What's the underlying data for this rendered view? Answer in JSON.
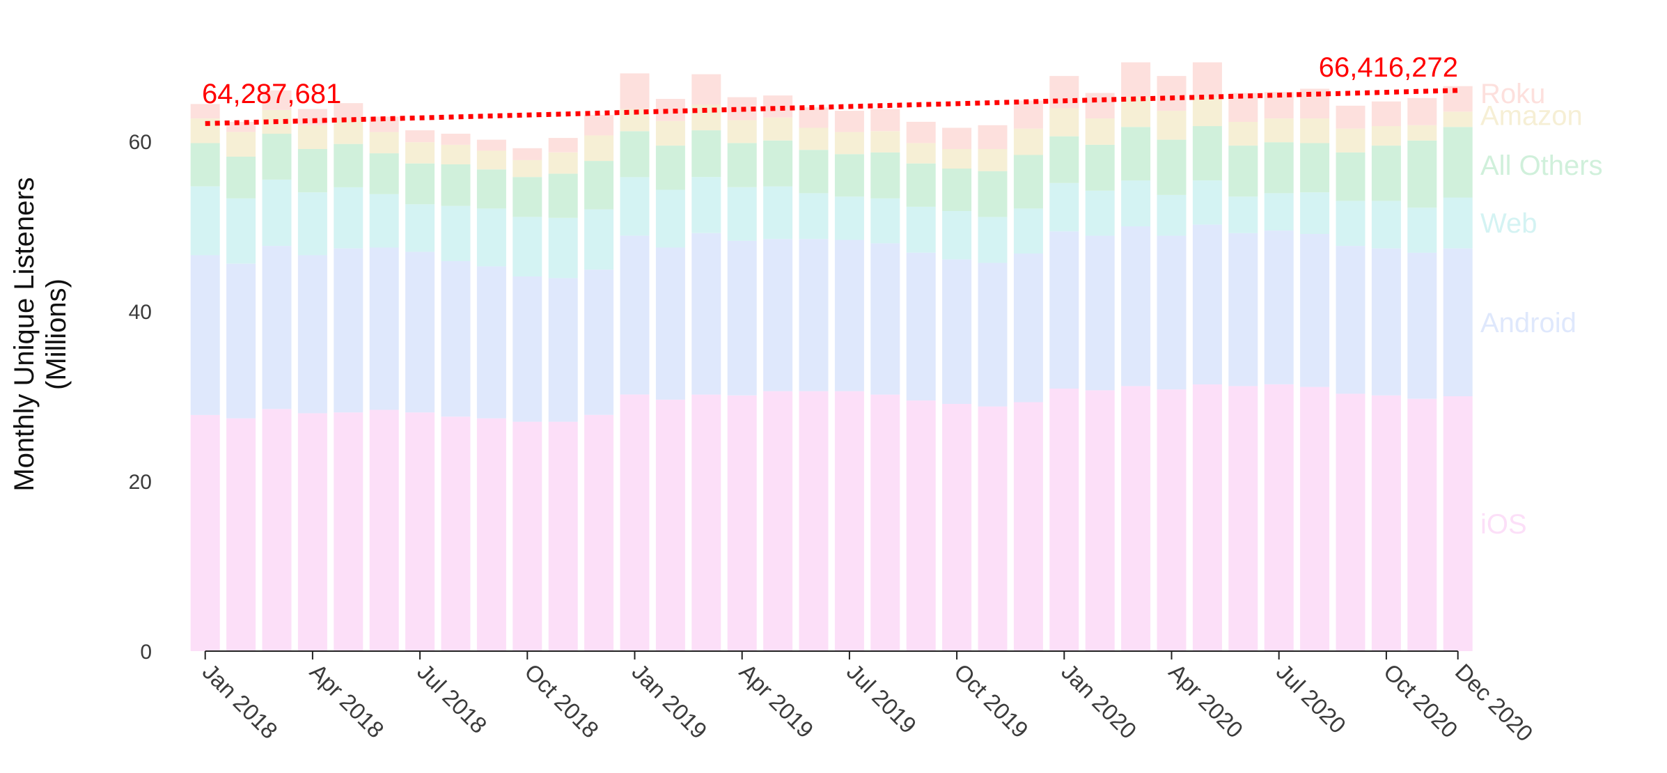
{
  "chart_data": {
    "type": "bar",
    "stacked": true,
    "ylabel_lines": [
      "Monthly Unique Listeners",
      "(Millions)"
    ],
    "ylim": [
      0,
      70
    ],
    "yticks": [
      0,
      20,
      40,
      60
    ],
    "xtick_labels": [
      {
        "index": 0,
        "label": "Jan 2018"
      },
      {
        "index": 3,
        "label": "Apr 2018"
      },
      {
        "index": 6,
        "label": "Jul 2018"
      },
      {
        "index": 9,
        "label": "Oct 2018"
      },
      {
        "index": 12,
        "label": "Jan 2019"
      },
      {
        "index": 15,
        "label": "Apr 2019"
      },
      {
        "index": 18,
        "label": "Jul 2019"
      },
      {
        "index": 21,
        "label": "Oct 2019"
      },
      {
        "index": 24,
        "label": "Jan 2020"
      },
      {
        "index": 27,
        "label": "Apr 2020"
      },
      {
        "index": 30,
        "label": "Jul 2020"
      },
      {
        "index": 33,
        "label": "Oct 2020"
      },
      {
        "index": 35,
        "label": "Dec 2020"
      }
    ],
    "series": [
      {
        "name": "iOS",
        "color": "#fcdff8",
        "values": [
          27.8,
          27.4,
          28.5,
          28.0,
          28.1,
          28.4,
          28.1,
          27.6,
          27.4,
          27.0,
          27.0,
          27.8,
          30.2,
          29.6,
          30.2,
          30.1,
          30.6,
          30.6,
          30.6,
          30.2,
          29.5,
          29.1,
          28.8,
          29.3,
          30.9,
          30.7,
          31.2,
          30.8,
          31.4,
          31.2,
          31.4,
          31.1,
          30.3,
          30.1,
          29.7,
          30.0
        ]
      },
      {
        "name": "Android",
        "color": "#dfe8fc",
        "values": [
          18.8,
          18.2,
          19.2,
          18.6,
          19.3,
          19.1,
          18.9,
          18.3,
          17.9,
          17.1,
          16.9,
          17.1,
          18.7,
          17.9,
          19.0,
          18.2,
          17.9,
          17.9,
          17.8,
          17.8,
          17.4,
          17.0,
          16.9,
          17.5,
          18.5,
          18.2,
          18.8,
          18.1,
          18.8,
          18.0,
          18.1,
          18.0,
          17.4,
          17.3,
          17.2,
          17.4
        ]
      },
      {
        "name": "Web",
        "color": "#d4f3f3",
        "values": [
          8.1,
          7.7,
          7.8,
          7.4,
          7.2,
          6.3,
          5.6,
          6.5,
          6.8,
          7.0,
          7.1,
          7.1,
          6.9,
          6.8,
          6.6,
          6.3,
          6.2,
          5.4,
          5.1,
          5.3,
          5.4,
          5.7,
          5.4,
          5.3,
          5.7,
          5.3,
          5.4,
          4.8,
          5.2,
          4.3,
          4.4,
          4.9,
          5.3,
          5.6,
          5.3,
          6.0
        ]
      },
      {
        "name": "All Others",
        "color": "#d0f0db",
        "values": [
          5.1,
          4.9,
          5.4,
          5.1,
          5.1,
          4.8,
          4.8,
          4.9,
          4.6,
          4.7,
          5.2,
          5.7,
          5.4,
          5.2,
          5.5,
          5.2,
          5.4,
          5.1,
          5.0,
          5.4,
          5.1,
          5.0,
          5.4,
          6.3,
          5.5,
          5.4,
          6.3,
          6.5,
          6.4,
          6.0,
          6.0,
          5.8,
          5.7,
          6.5,
          7.9,
          8.3
        ]
      },
      {
        "name": "Amazon",
        "color": "#f6efd5",
        "values": [
          2.9,
          2.9,
          2.8,
          2.8,
          2.8,
          2.5,
          2.5,
          2.3,
          2.2,
          2.0,
          2.5,
          3.0,
          2.6,
          2.9,
          3.0,
          2.7,
          2.7,
          2.6,
          2.6,
          2.5,
          2.4,
          2.3,
          2.6,
          3.1,
          3.3,
          3.1,
          3.5,
          3.4,
          3.4,
          2.8,
          2.8,
          2.9,
          2.8,
          2.3,
          1.8,
          1.8
        ]
      },
      {
        "name": "Roku",
        "color": "#fde0dd",
        "values": [
          1.7,
          1.2,
          2.3,
          1.9,
          2.0,
          1.8,
          1.4,
          1.3,
          1.3,
          1.4,
          1.7,
          2.4,
          4.2,
          2.6,
          3.6,
          2.7,
          2.6,
          2.4,
          2.5,
          2.6,
          2.5,
          2.5,
          2.8,
          3.3,
          3.8,
          3.0,
          4.1,
          4.1,
          4.1,
          3.4,
          3.1,
          3.5,
          2.7,
          2.9,
          3.2,
          3.0
        ]
      }
    ],
    "trend": {
      "color": "#ff0000",
      "start_value": 62.1,
      "end_value": 66.0,
      "start_label": "64,287,681",
      "end_label": "66,416,272"
    }
  }
}
